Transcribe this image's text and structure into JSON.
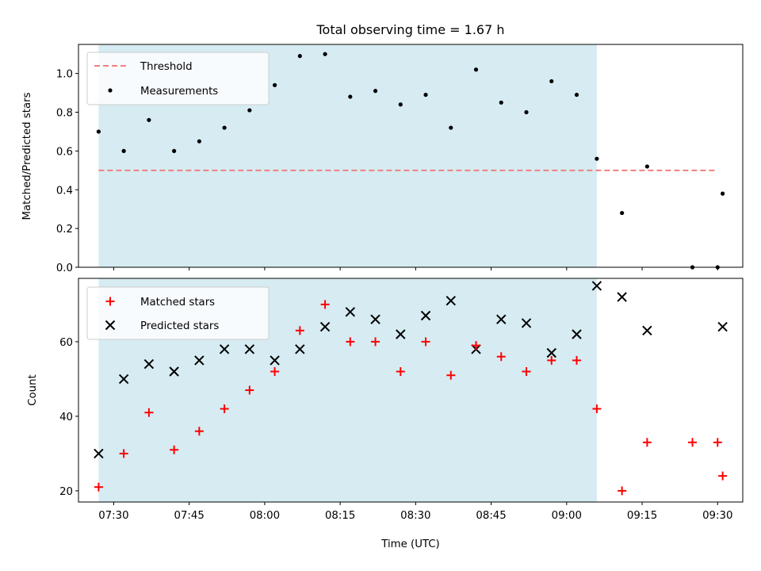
{
  "chart_data": [
    {
      "type": "scatter",
      "title": "Total observing time = 1.67 h",
      "ylabel": "Matched/Predicted stars",
      "xlabel": "",
      "xlim": [
        "07:23",
        "09:35"
      ],
      "ylim": [
        0,
        1.15
      ],
      "yticks": [
        0.0,
        0.2,
        0.4,
        0.6,
        0.8,
        1.0
      ],
      "ytick_labels": [
        "0.0",
        "0.2",
        "0.4",
        "0.6",
        "0.8",
        "1.0"
      ],
      "observing_window": {
        "start": "07:27",
        "end": "09:06",
        "color": "#add8e6"
      },
      "threshold": {
        "name": "Threshold",
        "value": 0.5,
        "x_range": [
          "07:27",
          "09:30"
        ],
        "color": "#f08080",
        "style": "dashed"
      },
      "legend": {
        "location": "upper-left",
        "entries": [
          "Threshold",
          "Measurements"
        ]
      },
      "series": [
        {
          "name": "Measurements",
          "marker": "dot",
          "color": "#000000",
          "x": [
            "07:27",
            "07:32",
            "07:37",
            "07:42",
            "07:47",
            "07:52",
            "07:57",
            "08:02",
            "08:07",
            "08:12",
            "08:17",
            "08:22",
            "08:27",
            "08:32",
            "08:37",
            "08:42",
            "08:47",
            "08:52",
            "08:57",
            "09:02",
            "09:06",
            "09:11",
            "09:16",
            "09:25",
            "09:30",
            "09:31"
          ],
          "y": [
            0.7,
            0.6,
            0.76,
            0.6,
            0.65,
            0.72,
            0.81,
            0.94,
            1.09,
            1.1,
            0.88,
            0.91,
            0.84,
            0.89,
            0.72,
            1.02,
            0.85,
            0.8,
            0.96,
            0.89,
            0.56,
            0.28,
            0.52,
            0.0,
            0.0,
            0.38
          ]
        }
      ]
    },
    {
      "type": "scatter",
      "title": "",
      "ylabel": "Count",
      "xlabel": "Time (UTC)",
      "xlim": [
        "07:23",
        "09:35"
      ],
      "ylim": [
        17,
        77
      ],
      "yticks": [
        20,
        40,
        60
      ],
      "ytick_labels": [
        "20",
        "40",
        "60"
      ],
      "xticks": [
        "07:30",
        "07:45",
        "08:00",
        "08:15",
        "08:30",
        "08:45",
        "09:00",
        "09:15",
        "09:30"
      ],
      "xtick_labels": [
        "07:30",
        "07:45",
        "08:00",
        "08:15",
        "08:30",
        "08:45",
        "09:00",
        "09:15",
        "09:30"
      ],
      "observing_window": {
        "start": "07:27",
        "end": "09:06",
        "color": "#add8e6"
      },
      "legend": {
        "location": "upper-left",
        "entries": [
          "Matched stars",
          "Predicted stars"
        ]
      },
      "series": [
        {
          "name": "Matched stars",
          "marker": "plus",
          "color": "#ff0000",
          "x": [
            "07:27",
            "07:32",
            "07:37",
            "07:42",
            "07:47",
            "07:52",
            "07:57",
            "08:02",
            "08:07",
            "08:12",
            "08:17",
            "08:22",
            "08:27",
            "08:32",
            "08:37",
            "08:42",
            "08:47",
            "08:52",
            "08:57",
            "09:02",
            "09:06",
            "09:11",
            "09:16",
            "09:25",
            "09:30",
            "09:31"
          ],
          "y": [
            21,
            30,
            41,
            31,
            36,
            42,
            47,
            52,
            63,
            70,
            60,
            60,
            52,
            60,
            51,
            59,
            56,
            52,
            55,
            55,
            42,
            20,
            33,
            33,
            33,
            24
          ]
        },
        {
          "name": "Predicted stars",
          "marker": "x",
          "color": "#000000",
          "x": [
            "07:27",
            "07:32",
            "07:37",
            "07:42",
            "07:47",
            "07:52",
            "07:57",
            "08:02",
            "08:07",
            "08:12",
            "08:17",
            "08:22",
            "08:27",
            "08:32",
            "08:37",
            "08:42",
            "08:47",
            "08:52",
            "08:57",
            "09:02",
            "09:06",
            "09:11",
            "09:16",
            "09:31"
          ],
          "y": [
            30,
            50,
            54,
            52,
            55,
            58,
            58,
            55,
            58,
            64,
            68,
            66,
            62,
            67,
            71,
            58,
            66,
            65,
            57,
            62,
            75,
            72,
            63,
            64
          ]
        }
      ]
    }
  ]
}
